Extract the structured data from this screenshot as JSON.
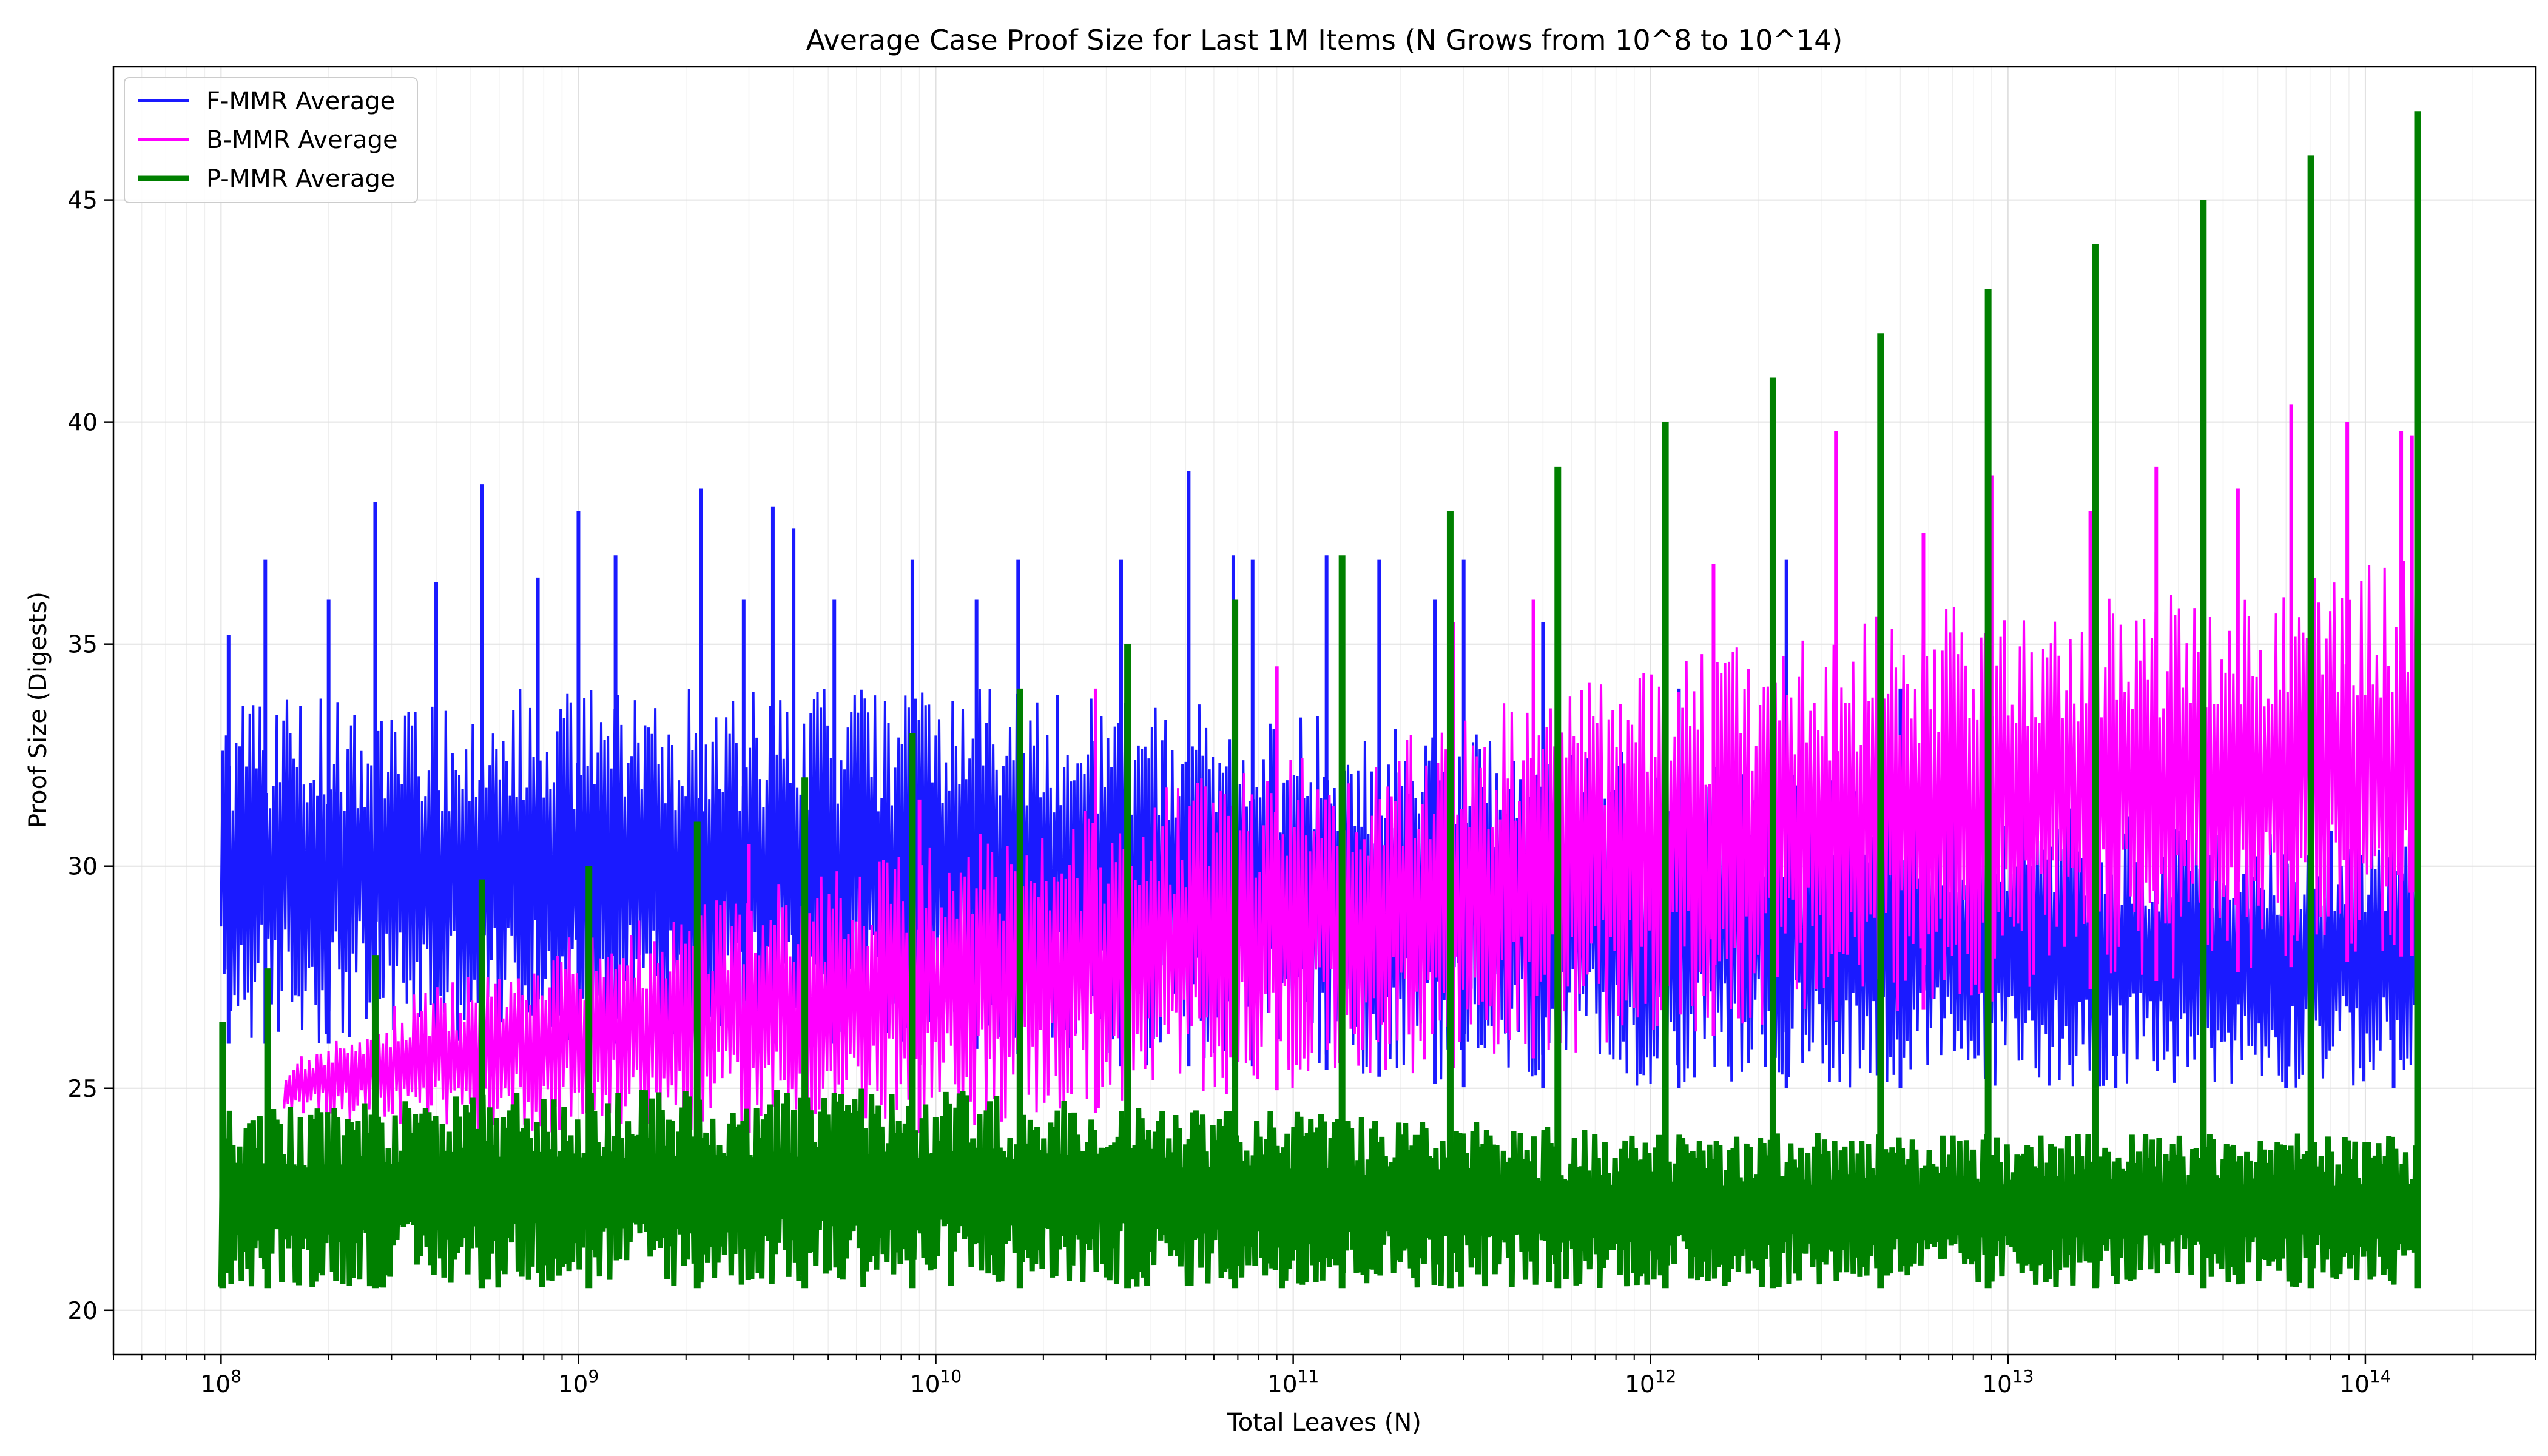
{
  "chart_data": {
    "type": "line",
    "title": "Average Case Proof Size for Last 1M Items (N Grows from 10^8 to 10^14)",
    "xlabel": "Total Leaves (N)",
    "ylabel": "Proof Size (Digests)",
    "x_scale": "log",
    "xlim": [
      50000000,
      300000000000000
    ],
    "ylim": [
      19,
      48
    ],
    "grid": true,
    "legend": "upper left",
    "x_ticks": [
      {
        "value": 100000000,
        "base": "10",
        "exp": "8"
      },
      {
        "value": 1000000000,
        "base": "10",
        "exp": "9"
      },
      {
        "value": 10000000000,
        "base": "10",
        "exp": "10"
      },
      {
        "value": 100000000000,
        "base": "10",
        "exp": "11"
      },
      {
        "value": 1000000000000,
        "base": "10",
        "exp": "12"
      },
      {
        "value": 10000000000000,
        "base": "10",
        "exp": "13"
      },
      {
        "value": 100000000000000,
        "base": "10",
        "exp": "14"
      }
    ],
    "y_ticks": [
      "20",
      "25",
      "30",
      "35",
      "40",
      "45"
    ],
    "series": [
      {
        "name": "F-MMR Average",
        "color": "#1a1aff",
        "x": [
          100000000,
          316000000,
          1000000000,
          3160000000,
          10000000000,
          31600000000,
          100000000000,
          316000000000,
          1000000000000,
          3160000000000,
          10000000000000,
          31600000000000,
          140000000000000
        ],
        "y_low": [
          26,
          26,
          26,
          26,
          26,
          25.5,
          25.5,
          25,
          25,
          25,
          25,
          25,
          25
        ],
        "y_high": [
          34,
          34,
          34,
          34,
          34,
          34,
          33.5,
          33,
          32.5,
          32,
          31.5,
          31,
          31
        ],
        "peaks": [
          {
            "x": 105000000,
            "y": 35.2
          },
          {
            "x": 133000000,
            "y": 36.9
          },
          {
            "x": 200000000,
            "y": 36
          },
          {
            "x": 270000000,
            "y": 38.2
          },
          {
            "x": 400000000,
            "y": 36.4
          },
          {
            "x": 537000000,
            "y": 38.6
          },
          {
            "x": 770000000,
            "y": 36.5
          },
          {
            "x": 1000000000,
            "y": 38
          },
          {
            "x": 1270000000,
            "y": 37
          },
          {
            "x": 2200000000,
            "y": 38.5
          },
          {
            "x": 2900000000,
            "y": 36
          },
          {
            "x": 3500000000,
            "y": 38.1
          },
          {
            "x": 4000000000,
            "y": 37.6
          },
          {
            "x": 5200000000,
            "y": 36
          },
          {
            "x": 8600000000,
            "y": 36.9
          },
          {
            "x": 13000000000,
            "y": 36
          },
          {
            "x": 17000000000,
            "y": 36.9
          },
          {
            "x": 33000000000,
            "y": 36.9
          },
          {
            "x": 51000000000,
            "y": 38.9
          },
          {
            "x": 68000000000,
            "y": 37
          },
          {
            "x": 77000000000,
            "y": 36.9
          },
          {
            "x": 124000000000,
            "y": 37
          },
          {
            "x": 174000000000,
            "y": 36.9
          },
          {
            "x": 249000000000,
            "y": 36
          },
          {
            "x": 300000000000,
            "y": 36.9
          },
          {
            "x": 500000000000,
            "y": 35.5
          },
          {
            "x": 1200000000000,
            "y": 34
          },
          {
            "x": 2400000000000,
            "y": 36.9
          },
          {
            "x": 5000000000000,
            "y": 34
          },
          {
            "x": 20000000000000,
            "y": 33
          },
          {
            "x": 60000000000000,
            "y": 32
          },
          {
            "x": 120000000000000,
            "y": 31
          }
        ]
      },
      {
        "name": "B-MMR Average",
        "color": "#ff00ff",
        "x": [
          150000000,
          316000000,
          1000000000,
          3160000000,
          10000000000,
          31600000000,
          100000000000,
          316000000000,
          1000000000000,
          3160000000000,
          10000000000000,
          31600000000000,
          140000000000000
        ],
        "y_low": [
          24.5,
          24,
          24,
          24,
          24,
          24.5,
          25,
          25.5,
          26,
          26.5,
          27,
          27.5,
          28
        ],
        "y_high": [
          25.5,
          27,
          28.5,
          29.5,
          30.5,
          31.5,
          32.5,
          33.5,
          34.5,
          35.5,
          36,
          36.5,
          37
        ],
        "peaks": [
          {
            "x": 3000000000,
            "y": 30.5
          },
          {
            "x": 9000000000,
            "y": 31.5
          },
          {
            "x": 28000000000,
            "y": 34
          },
          {
            "x": 90000000000,
            "y": 34.5
          },
          {
            "x": 280000000000,
            "y": 35.5
          },
          {
            "x": 470000000000,
            "y": 36
          },
          {
            "x": 1500000000000,
            "y": 36.8
          },
          {
            "x": 3300000000000,
            "y": 39.8
          },
          {
            "x": 5800000000000,
            "y": 37.5
          },
          {
            "x": 9000000000000,
            "y": 38.8
          },
          {
            "x": 17000000000000,
            "y": 38
          },
          {
            "x": 26000000000000,
            "y": 39
          },
          {
            "x": 44000000000000,
            "y": 38.5
          },
          {
            "x": 62000000000000,
            "y": 40.4
          },
          {
            "x": 89000000000000,
            "y": 40
          },
          {
            "x": 126000000000000,
            "y": 39.8
          },
          {
            "x": 135000000000000,
            "y": 39.7
          }
        ]
      },
      {
        "name": "P-MMR Average",
        "color": "#008000",
        "x": [
          100000000,
          1000000000,
          10000000000,
          100000000000,
          1000000000000,
          10000000000000,
          140000000000000
        ],
        "y_low": [
          20.5,
          20.5,
          20.5,
          20.5,
          20.5,
          20.5,
          20.5
        ],
        "y_high": [
          24.5,
          25,
          25,
          24.5,
          24,
          24,
          24
        ],
        "peaks": [
          {
            "x": 101000000,
            "y": 26.5
          },
          {
            "x": 135000000,
            "y": 27.7
          },
          {
            "x": 270000000,
            "y": 28
          },
          {
            "x": 537000000,
            "y": 29.7
          },
          {
            "x": 1070000000,
            "y": 30
          },
          {
            "x": 2150000000,
            "y": 31
          },
          {
            "x": 4300000000,
            "y": 32
          },
          {
            "x": 8600000000,
            "y": 33
          },
          {
            "x": 17200000000,
            "y": 34
          },
          {
            "x": 34400000000,
            "y": 35
          },
          {
            "x": 68700000000,
            "y": 36
          },
          {
            "x": 137000000000,
            "y": 37
          },
          {
            "x": 275000000000,
            "y": 38
          },
          {
            "x": 550000000000,
            "y": 39
          },
          {
            "x": 1100000000000,
            "y": 40
          },
          {
            "x": 2200000000000,
            "y": 41
          },
          {
            "x": 4400000000000,
            "y": 42
          },
          {
            "x": 8800000000000,
            "y": 43
          },
          {
            "x": 17600000000000,
            "y": 44
          },
          {
            "x": 35200000000000,
            "y": 45
          },
          {
            "x": 70400000000000,
            "y": 46
          },
          {
            "x": 140000000000000,
            "y": 47
          }
        ]
      }
    ]
  }
}
